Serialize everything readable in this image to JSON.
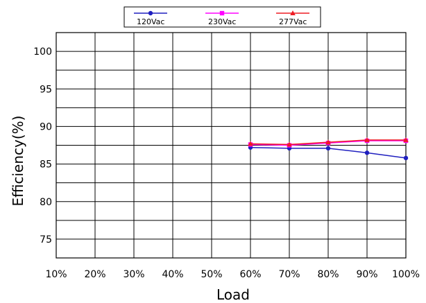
{
  "chart_data": {
    "type": "line",
    "categories": [
      "10%",
      "20%",
      "30%",
      "40%",
      "50%",
      "60%",
      "70%",
      "80%",
      "90%",
      "100%"
    ],
    "xlabel": "Load",
    "ylabel": "Efficiency(%)",
    "ylim": [
      72.5,
      102.5
    ],
    "yticks": [
      75,
      80,
      85,
      90,
      95,
      100
    ],
    "grid": true,
    "legend_position": "top-center",
    "series": [
      {
        "name": "120Vac",
        "color": "#1f1fbf",
        "marker": "circle",
        "values": [
          null,
          null,
          null,
          null,
          null,
          87.2,
          87.1,
          87.1,
          86.5,
          85.8
        ]
      },
      {
        "name": "230Vac",
        "color": "#ff00ff",
        "marker": "square",
        "values": [
          null,
          null,
          null,
          null,
          null,
          87.6,
          87.5,
          87.8,
          88.1,
          88.1
        ]
      },
      {
        "name": "277Vac",
        "color": "#ee1c24",
        "marker": "triangle",
        "values": [
          null,
          null,
          null,
          null,
          null,
          87.7,
          87.6,
          87.9,
          88.2,
          88.2
        ]
      }
    ]
  }
}
